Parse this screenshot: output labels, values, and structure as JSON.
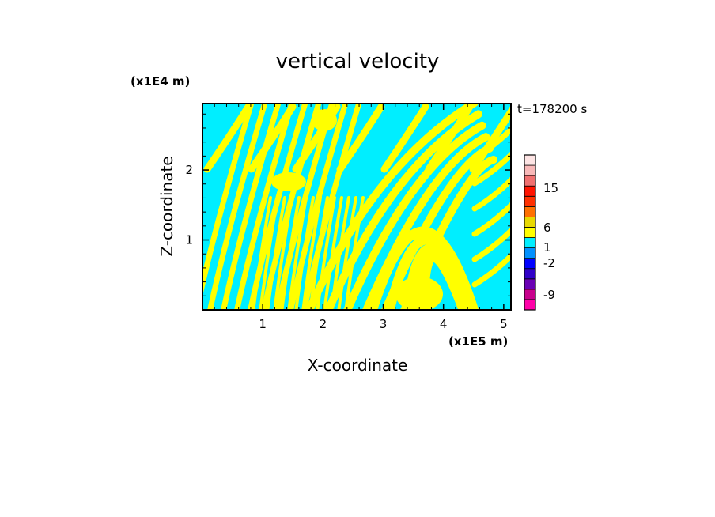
{
  "chart_data": {
    "type": "heatmap",
    "title": "vertical velocity",
    "xlabel": "X-coordinate",
    "ylabel": "Z-coordinate",
    "x_unit": "(x1E5 m)",
    "y_unit": "(x1E4 m)",
    "time_label": "t=178200 s",
    "xlim": [
      0.0,
      5.12
    ],
    "ylim": [
      0.0,
      2.95
    ],
    "x_ticks": [
      "1",
      "2",
      "3",
      "4",
      "5"
    ],
    "y_ticks": [
      "1",
      "2"
    ],
    "x_tick_values": [
      1,
      2,
      3,
      4,
      5
    ],
    "y_tick_values": [
      1,
      2
    ],
    "field_colors": {
      "positive": "#ffff00",
      "negative": "#00eeff"
    },
    "colorbar": {
      "tick_labels": [
        "15",
        "6",
        "1",
        "-2",
        "-9"
      ],
      "levels": [
        -12,
        -9,
        -6,
        -4,
        -2,
        -1,
        0,
        1,
        2,
        4,
        6,
        9,
        12,
        15,
        20
      ],
      "colors": [
        "#ff00a8",
        "#c8008c",
        "#6a00b4",
        "#3000c8",
        "#0000ff",
        "#0090ff",
        "#00eeff",
        "#ffff00",
        "#e8d800",
        "#ff7000",
        "#ff3000",
        "#ff1400",
        "#f07070",
        "#f8b8b8",
        "#fde4e4"
      ]
    }
  }
}
